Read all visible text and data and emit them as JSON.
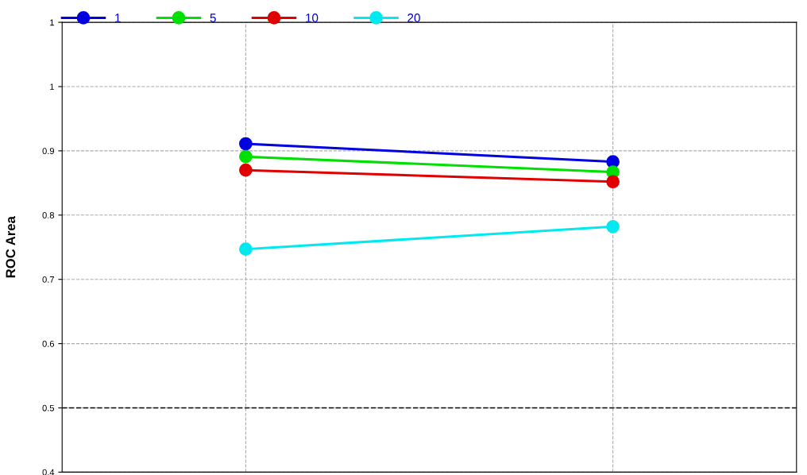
{
  "chart_data": {
    "type": "line",
    "ylabel": "ROC Area",
    "categories": [
      null,
      null
    ],
    "series": [
      {
        "name": "1",
        "color": "#0000e0",
        "values": [
          0.911,
          0.883
        ]
      },
      {
        "name": "5",
        "color": "#00e000",
        "values": [
          0.891,
          0.867
        ]
      },
      {
        "name": "10",
        "color": "#e00000",
        "values": [
          0.87,
          0.852
        ]
      },
      {
        "name": "20",
        "color": "#00e8f0",
        "values": [
          0.747,
          0.782
        ]
      }
    ],
    "ylim": [
      0.4,
      1.1
    ],
    "yticks": [
      0.4,
      0.5,
      0.6,
      0.7,
      0.8,
      0.9,
      {
        "value": 1.0,
        "label": "1"
      },
      {
        "value": 1.1,
        "label": "1"
      }
    ],
    "ref_lines": [
      {
        "axis": "y",
        "value": 0.5,
        "color": "#000000",
        "line_style": "dashed"
      }
    ],
    "grid": true,
    "legend": "top",
    "marker": "circle",
    "line_style": "solid"
  }
}
